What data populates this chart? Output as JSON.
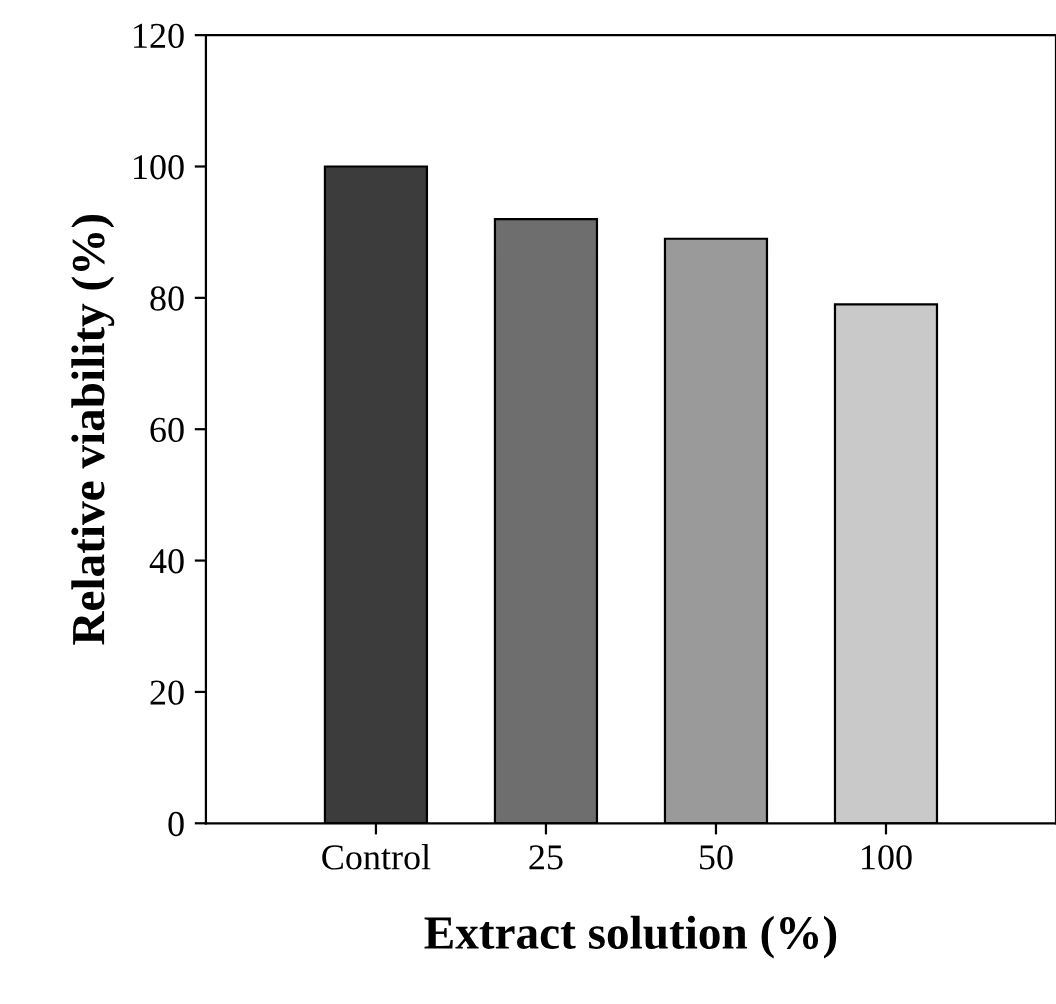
{
  "chart_data": {
    "type": "bar",
    "xlabel": "Extract solution (%)",
    "ylabel": "Relative viability (%)",
    "categories": [
      "Control",
      "25",
      "50",
      "100"
    ],
    "values": [
      100,
      92,
      89,
      79
    ],
    "colors": [
      "#3c3c3c",
      "#6e6e6e",
      "#9a9a9a",
      "#c9c9c9"
    ],
    "ylim": [
      0,
      120
    ],
    "yticks": [
      0,
      20,
      40,
      60,
      80,
      100,
      120
    ],
    "grid": false,
    "legend": false
  }
}
